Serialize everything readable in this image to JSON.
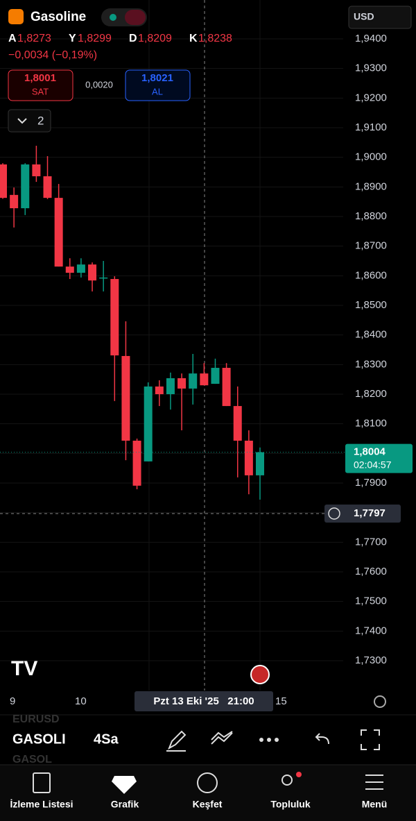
{
  "header": {
    "symbol": "Gasoline",
    "currency": "USD",
    "ohlc": [
      {
        "key": "A",
        "value": "1,8273"
      },
      {
        "key": "Y",
        "value": "1,8299"
      },
      {
        "key": "D",
        "value": "1,8209"
      },
      {
        "key": "K",
        "value": "1,8238"
      }
    ],
    "change": "−0,0034 (−0,19%)",
    "sell_price": "1,8001",
    "sell_label": "SAT",
    "spread": "0,0020",
    "buy_price": "1,8021",
    "buy_label": "AL",
    "indicator_count": "2"
  },
  "chart_data": {
    "type": "candlestick",
    "open": [
      1.8976,
      1.8873,
      1.8828,
      1.8976,
      1.8936,
      1.8863,
      1.8631,
      1.861,
      1.8638,
      1.8591,
      1.8589,
      1.8329,
      1.8043,
      1.7973,
      1.8226,
      1.82,
      1.8254,
      1.8219,
      1.827,
      1.8235,
      1.8289,
      1.816,
      1.8043,
      1.7926
    ],
    "high": [
      1.898,
      1.8898,
      1.898,
      1.9039,
      1.9004,
      1.891,
      1.8659,
      1.8659,
      1.8645,
      1.865,
      1.8598,
      1.8446,
      1.805,
      1.824,
      1.8247,
      1.8273,
      1.827,
      1.8336,
      1.8305,
      1.832,
      1.8305,
      1.8226,
      1.8078,
      1.802
    ],
    "low": [
      1.886,
      1.8763,
      1.8805,
      1.8917,
      1.8859,
      1.8631,
      1.8589,
      1.8594,
      1.8547,
      1.8547,
      1.8177,
      1.7977,
      1.7879,
      1.7973,
      1.816,
      1.8148,
      1.8078,
      1.8165,
      1.823,
      1.8235,
      1.816,
      1.7919,
      1.7862,
      1.7844
    ],
    "close": [
      1.8863,
      1.8828,
      1.8976,
      1.8936,
      1.8863,
      1.8631,
      1.861,
      1.8638,
      1.8584,
      1.8594,
      1.8331,
      1.8043,
      1.7891,
      1.8226,
      1.82,
      1.8254,
      1.8219,
      1.827,
      1.823,
      1.8289,
      1.816,
      1.8043,
      1.7926,
      1.8004
    ],
    "up_color": "#089981",
    "down_color": "#f23645",
    "ylim": [
      1.94,
      1.73
    ],
    "yticks": [
      {
        "value": 1.94,
        "label": "1,9400"
      },
      {
        "value": 1.93,
        "label": "1,9300"
      },
      {
        "value": 1.92,
        "label": "1,9200"
      },
      {
        "value": 1.91,
        "label": "1,9100"
      },
      {
        "value": 1.9,
        "label": "1,9000"
      },
      {
        "value": 1.89,
        "label": "1,8900"
      },
      {
        "value": 1.88,
        "label": "1,8800"
      },
      {
        "value": 1.87,
        "label": "1,8700"
      },
      {
        "value": 1.86,
        "label": "1,8600"
      },
      {
        "value": 1.85,
        "label": "1,8500"
      },
      {
        "value": 1.84,
        "label": "1,8400"
      },
      {
        "value": 1.83,
        "label": "1,8300"
      },
      {
        "value": 1.82,
        "label": "1,8200"
      },
      {
        "value": 1.81,
        "label": "1,8100"
      },
      {
        "value": 1.8,
        "label": "1,8000"
      },
      {
        "value": 1.79,
        "label": "1,7900"
      },
      {
        "value": 1.78,
        "label": "1,7800"
      },
      {
        "value": 1.77,
        "label": "1,7700"
      },
      {
        "value": 1.76,
        "label": "1,7600"
      },
      {
        "value": 1.75,
        "label": "1,7500"
      },
      {
        "value": 1.74,
        "label": "1,7400"
      },
      {
        "value": 1.73,
        "label": "1,7300"
      }
    ],
    "grid": true,
    "last_price": {
      "value": 1.8004,
      "label": "1,8004"
    },
    "countdown": "02:04:57",
    "crosshair_price": {
      "value": 1.7797,
      "label": "1,7797"
    },
    "crosshair_date": "Pzt 13 Eki '25   21:00",
    "x_labels": [
      "9",
      "10",
      "15"
    ]
  },
  "toolbar": {
    "symbol": "GASOLI",
    "interval": "4Sa",
    "ghost_symbols": [
      "EURUSD",
      "GASOL"
    ]
  },
  "nav": [
    "İzleme Listesi",
    "Grafik",
    "Keşfet",
    "Topluluk",
    "Menü"
  ]
}
